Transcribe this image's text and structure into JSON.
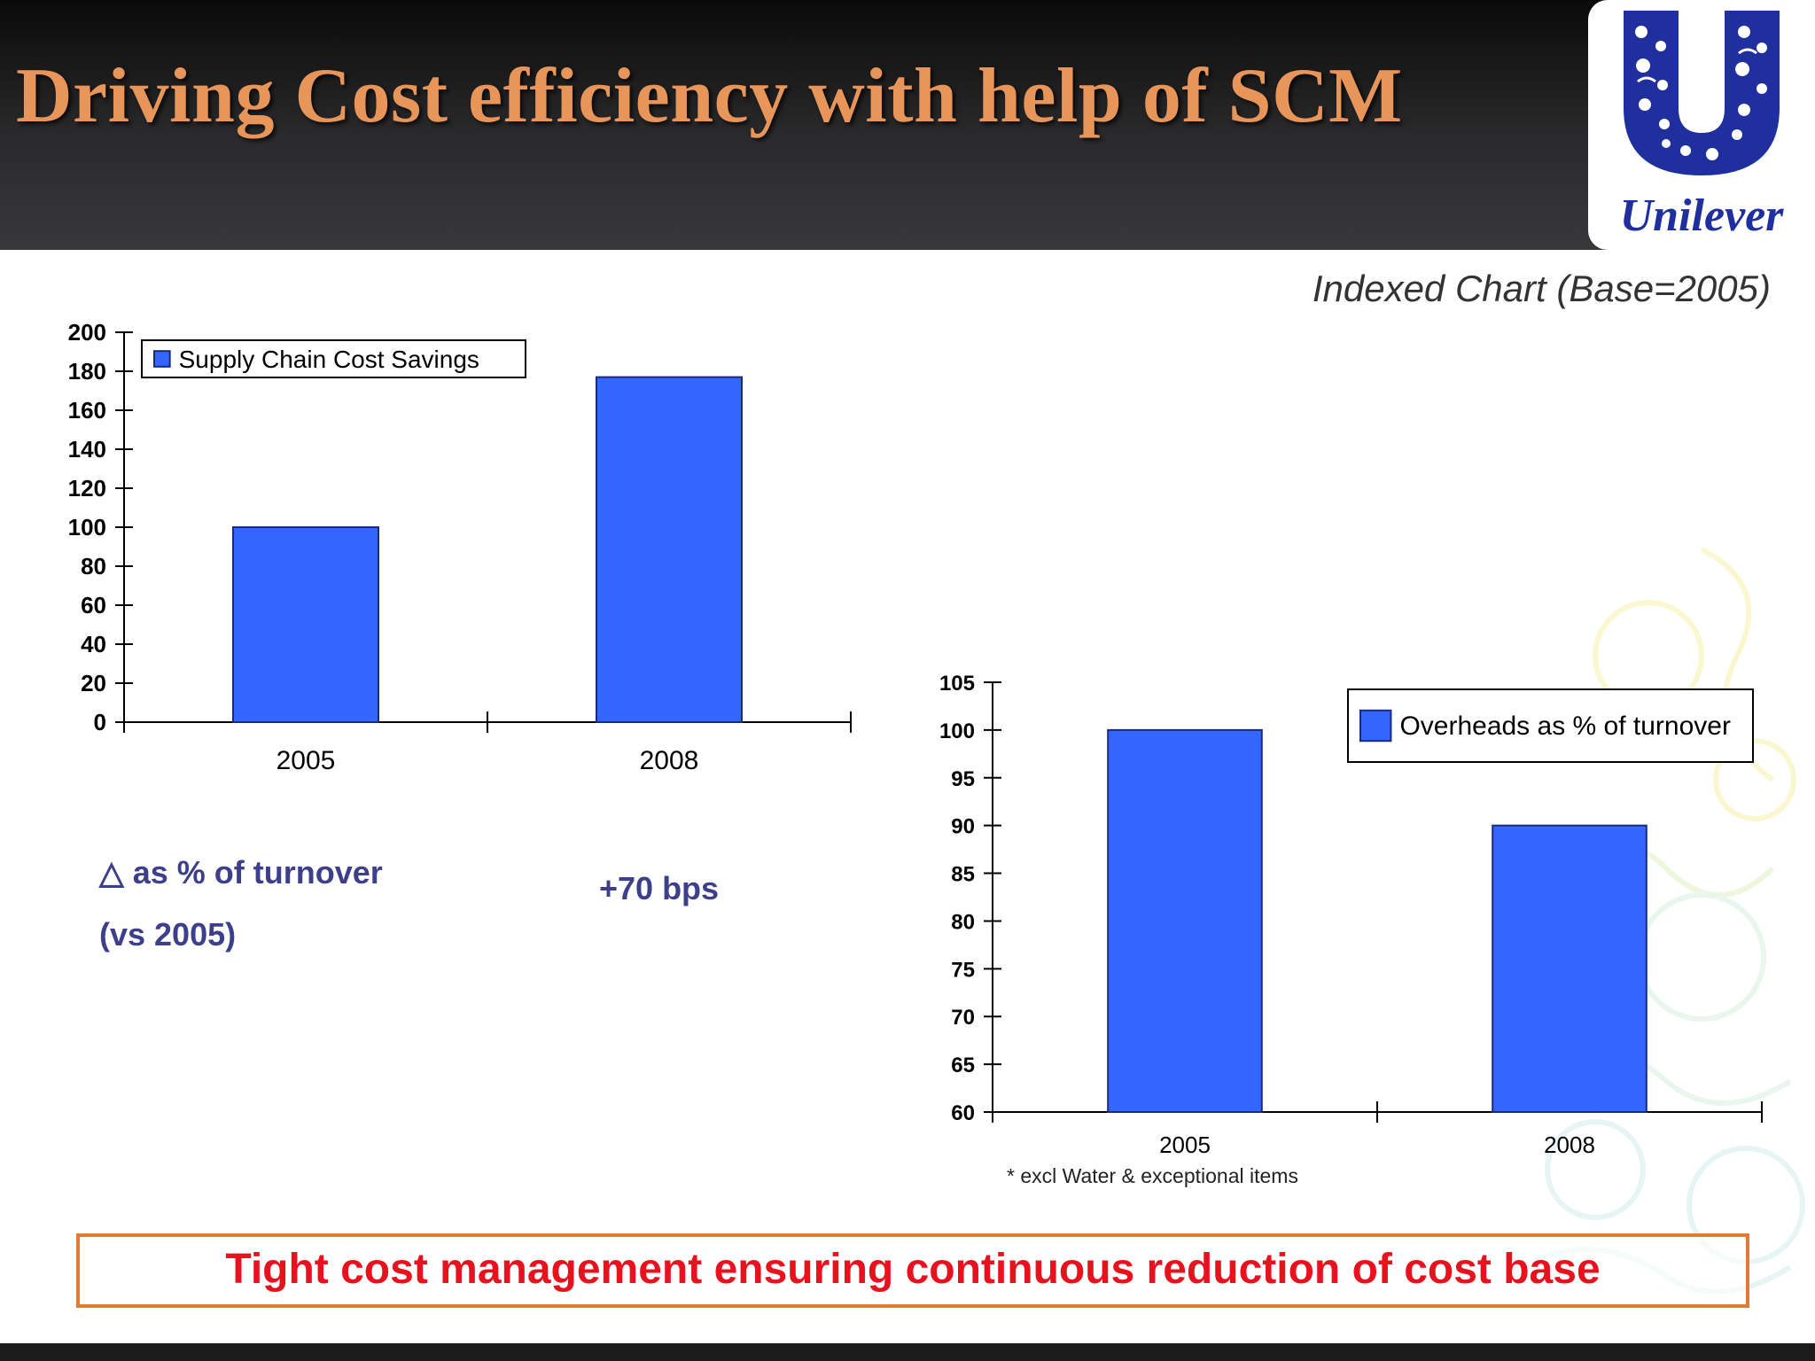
{
  "header": {
    "title": "Driving Cost efficiency with help of SCM",
    "logo_text": "Unilever"
  },
  "chart_note": "Indexed Chart (Base=2005)",
  "chart_data": [
    {
      "type": "bar",
      "categories": [
        "2005",
        "2008"
      ],
      "series": [
        {
          "name": "Supply Chain Cost Savings",
          "values": [
            100,
            177
          ]
        }
      ],
      "yticks": [
        "0",
        "20",
        "40",
        "60",
        "80",
        "100",
        "120",
        "140",
        "160",
        "180",
        "200"
      ],
      "ylim": [
        0,
        200
      ],
      "legend": "top-left",
      "grid": false,
      "color": "#3366ff"
    },
    {
      "type": "bar",
      "categories": [
        "2005",
        "2008"
      ],
      "series": [
        {
          "name": "Overheads as % of turnover",
          "values": [
            100,
            90
          ]
        }
      ],
      "yticks": [
        "60",
        "65",
        "70",
        "75",
        "80",
        "85",
        "90",
        "95",
        "100",
        "105"
      ],
      "ylim": [
        60,
        105
      ],
      "legend": "top-right",
      "grid": false,
      "color": "#3366ff"
    }
  ],
  "delta": {
    "label_line1": "△ as % of turnover",
    "label_line2": "(vs 2005)",
    "value": "+70 bps"
  },
  "footnote": "* excl Water & exceptional items",
  "takeaway": "Tight cost management ensuring continuous reduction of cost base"
}
